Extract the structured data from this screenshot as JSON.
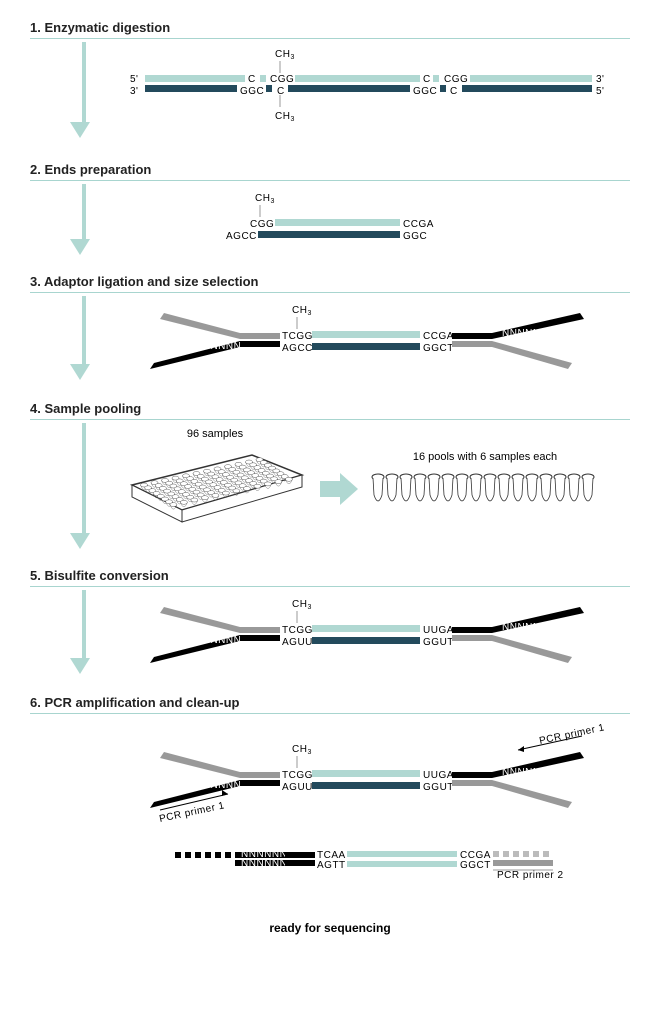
{
  "steps": {
    "s1": {
      "title": "1. Enzymatic digestion"
    },
    "s2": {
      "title": "2. Ends preparation"
    },
    "s3": {
      "title": "3. Adaptor ligation and size selection"
    },
    "s4": {
      "title": "4. Sample pooling",
      "leftLabel": "96 samples",
      "rightLabel": "16 pools with 6 samples each"
    },
    "s5": {
      "title": "5. Bisulfite conversion"
    },
    "s6": {
      "title": "6. PCR amplification and clean-up"
    }
  },
  "labels": {
    "ch3": "CH",
    "ch3sub": "3",
    "five": "5'",
    "three": "3'",
    "nnn": "NNNNNN",
    "pcr1": "PCR primer 1",
    "pcr2": "PCR primer 2",
    "ready": "ready for sequencing"
  },
  "seq": {
    "s1_top_a": "C",
    "s1_top_b": "CGG",
    "s1_top_c": "C",
    "s1_top_d": "CGG",
    "s1_bot_a": "GGC",
    "s1_bot_b": "C",
    "s1_bot_c": "GGC",
    "s1_bot_d": "C",
    "s2_top_a": "CGG",
    "s2_top_b_red": "CGA",
    "s2_top_b_black": "C",
    "s2_bot_a_red": "AGC",
    "s2_bot_a_black": "C",
    "s2_bot_b": "GGC",
    "s3_top_a": "TCGG",
    "s3_top_b": "CCGA",
    "s3_bot_a": "AGCC",
    "s3_bot_b": "GGCT",
    "s5_top_a": "TCGG",
    "s5_top_b_red": "UU",
    "s5_top_b_black": "GA",
    "s5_bot_a_black": "AG",
    "s5_bot_a_red": "UU",
    "s5_bot_b_black1": "GG",
    "s5_bot_b_red": "U",
    "s5_bot_b_black2": "T",
    "s6_top_a": "TCGG",
    "s6_top_b_red": "UU",
    "s6_top_b_black": "GA",
    "s6_bot_a_black": "AG",
    "s6_bot_a_red": "UU",
    "s6_bot_b_black1": "GG",
    "s6_bot_b_red": "U",
    "s6_bot_b_black2": "T",
    "s6b_top_a_black": "TC",
    "s6b_top_a_red": "AA",
    "s6b_top_b": "CCGA",
    "s6b_bot_a_black": "AG",
    "s6b_bot_a_red": "TT",
    "s6b_bot_b": "GGCT"
  },
  "colors": {
    "lightTeal": "#b0d8d2",
    "darkTeal": "#234a5c",
    "red": "#c72020",
    "grayAdapter": "#999999"
  }
}
